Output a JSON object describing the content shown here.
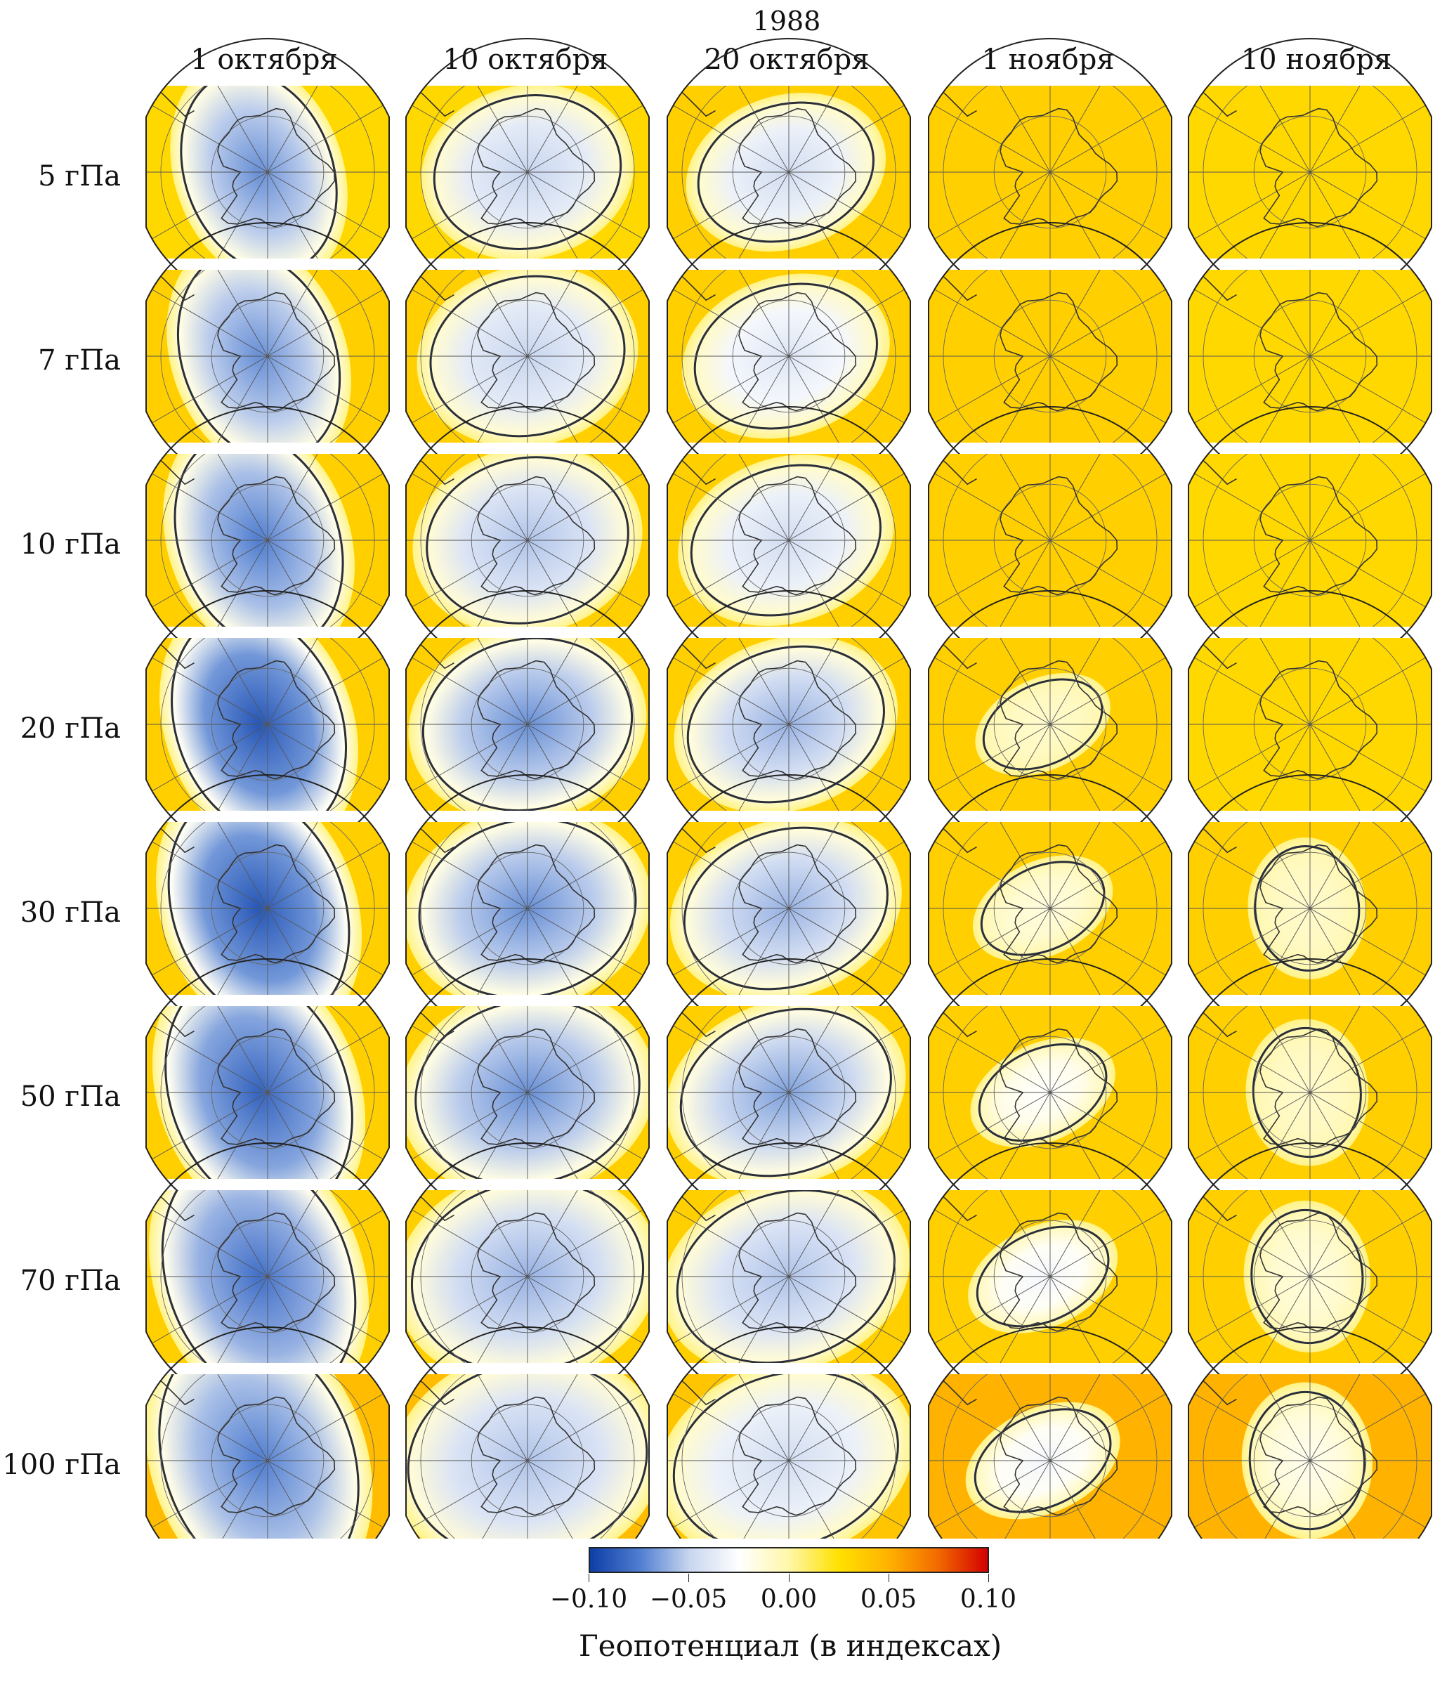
{
  "year": "1988",
  "columns": [
    "1 октября",
    "10 октября",
    "20 октября",
    "1 ноября",
    "10 ноября"
  ],
  "rows": [
    "5 гПа",
    "7 гПа",
    "10 гПа",
    "20 гПа",
    "30 гПа",
    "50 гПа",
    "70 гПа",
    "100 гПа"
  ],
  "colorbar": {
    "title": "Геопотенциал (в индексах)",
    "ticks": [
      "−0.10",
      "−0.05",
      "0.00",
      "0.05",
      "0.10"
    ],
    "range": [
      -0.1,
      0.1
    ],
    "colors": [
      "#0d3ea6",
      "#4f7dd0",
      "#c8d6ef",
      "#ffffff",
      "#fff7a8",
      "#ffe100",
      "#ffb300",
      "#f26a00",
      "#d40000"
    ]
  },
  "anomaly_min": [
    [
      -0.07,
      -0.05,
      -0.045,
      0.0,
      0.0
    ],
    [
      -0.07,
      -0.05,
      -0.04,
      0.0,
      0.0
    ],
    [
      -0.075,
      -0.055,
      -0.045,
      0.0,
      0.0
    ],
    [
      -0.09,
      -0.07,
      -0.06,
      -0.01,
      0.0
    ],
    [
      -0.09,
      -0.07,
      -0.06,
      -0.015,
      -0.01
    ],
    [
      -0.085,
      -0.07,
      -0.065,
      -0.025,
      -0.01
    ],
    [
      -0.08,
      -0.06,
      -0.055,
      -0.03,
      -0.015
    ],
    [
      -0.075,
      -0.055,
      -0.045,
      -0.03,
      -0.02
    ]
  ],
  "background_level": [
    [
      0.03,
      0.03,
      0.035,
      0.035,
      0.03
    ],
    [
      0.035,
      0.035,
      0.035,
      0.035,
      0.03
    ],
    [
      0.035,
      0.035,
      0.035,
      0.035,
      0.03
    ],
    [
      0.035,
      0.035,
      0.035,
      0.035,
      0.03
    ],
    [
      0.035,
      0.035,
      0.035,
      0.035,
      0.035
    ],
    [
      0.035,
      0.035,
      0.035,
      0.035,
      0.035
    ],
    [
      0.035,
      0.035,
      0.035,
      0.035,
      0.035
    ],
    [
      0.045,
      0.045,
      0.04,
      0.05,
      0.05
    ]
  ]
}
